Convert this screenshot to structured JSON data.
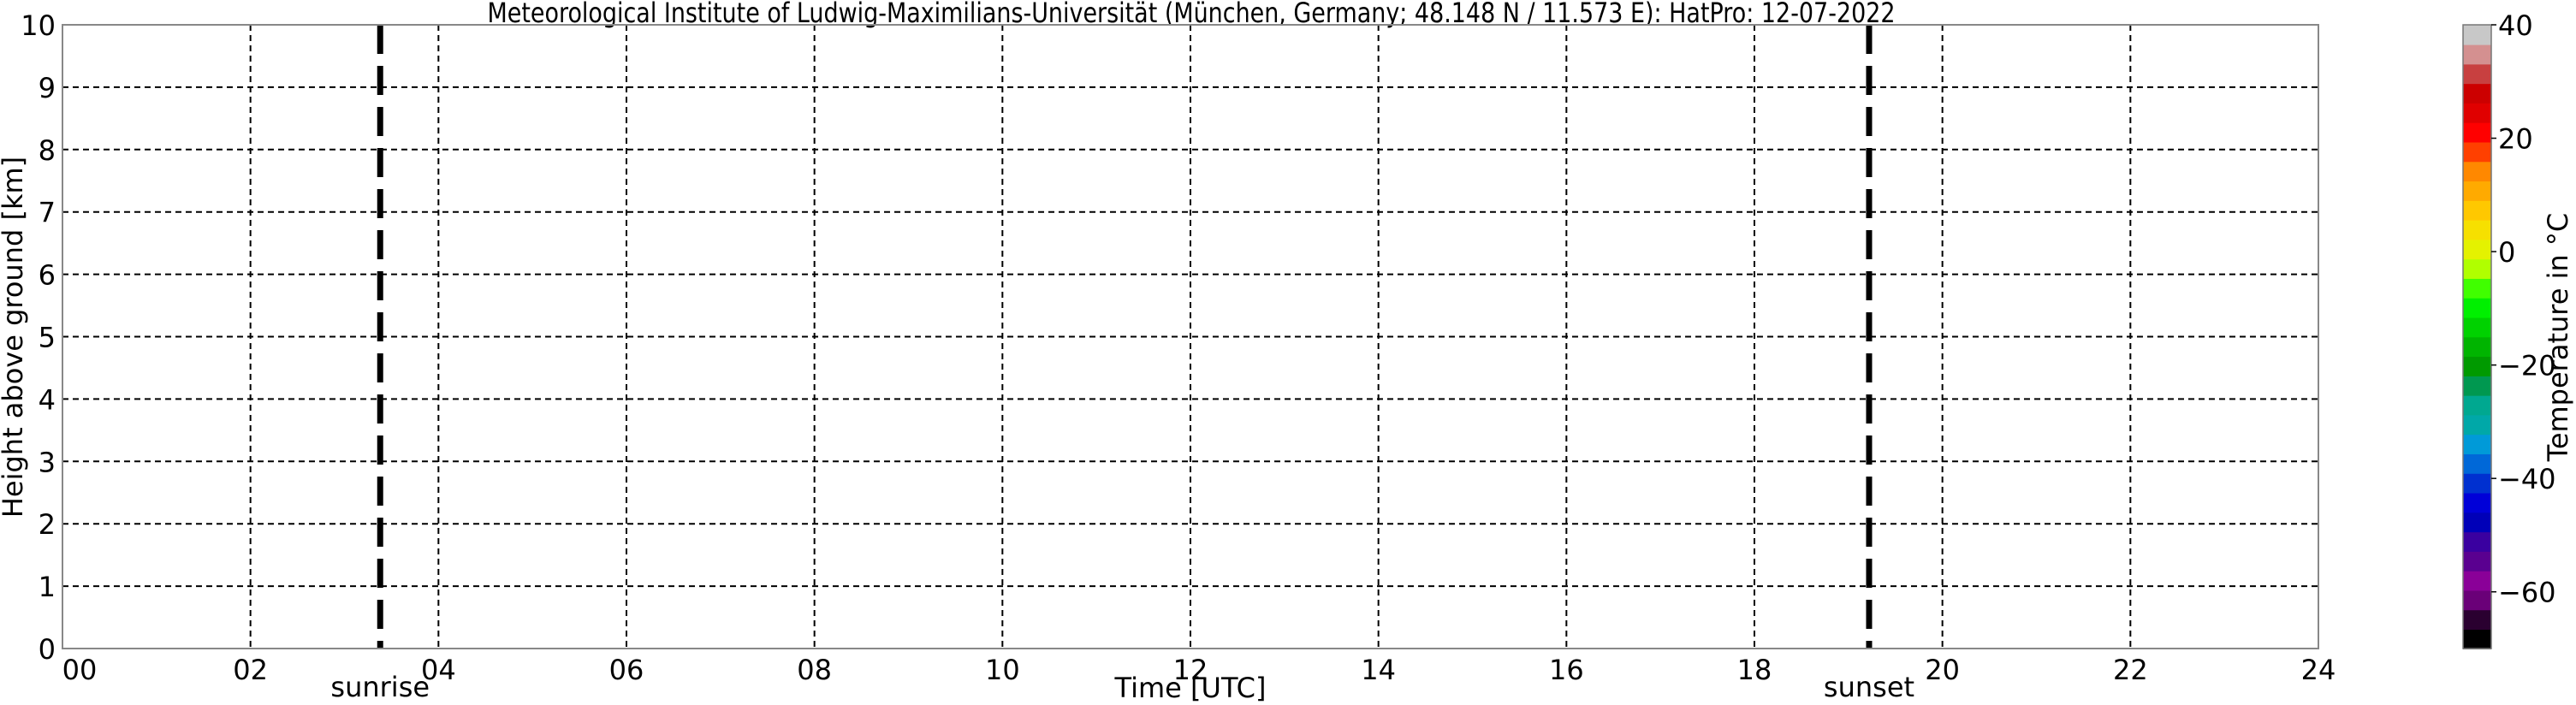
{
  "chart_data": {
    "type": "heatmap",
    "title": "Meteorological Institute of Ludwig-Maximilians-Universität (München, Germany; 48.148 N / 11.573 E):    HatPro: 12-07-2022",
    "xlabel": "Time [UTC]",
    "ylabel": "Height above ground [km]",
    "xlim": [
      0,
      24
    ],
    "ylim": [
      0,
      10
    ],
    "xticks": [
      "00",
      "02",
      "04",
      "06",
      "08",
      "10",
      "12",
      "14",
      "16",
      "18",
      "20",
      "22",
      "24"
    ],
    "xtick_values": [
      0,
      2,
      4,
      6,
      8,
      10,
      12,
      14,
      16,
      18,
      20,
      22,
      24
    ],
    "yticks": [
      "0",
      "1",
      "2",
      "3",
      "4",
      "5",
      "6",
      "7",
      "8",
      "9",
      "10"
    ],
    "yvalues": [
      0,
      1,
      2,
      3,
      4,
      5,
      6,
      7,
      8,
      9,
      10
    ],
    "grid": true,
    "values": [],
    "annotations": [
      {
        "label": "sunrise",
        "x": 3.38
      },
      {
        "label": "sunset",
        "x": 19.22
      }
    ],
    "colorbar": {
      "label": "Temperature in $^\\circ$C",
      "label_text": "Temperature in °C",
      "range": [
        -70,
        40
      ],
      "ticks": [
        "40",
        "20",
        "0",
        "−20",
        "−40",
        "−60"
      ],
      "tick_values": [
        40,
        20,
        0,
        -20,
        -40,
        -60
      ],
      "colors": [
        "#000000",
        "#2a0030",
        "#6a0078",
        "#8a0098",
        "#5a0090",
        "#3a00a0",
        "#0000b8",
        "#0000d8",
        "#0030d0",
        "#0068d8",
        "#009ad8",
        "#00a8a8",
        "#00a890",
        "#009850",
        "#009a00",
        "#00b400",
        "#00d200",
        "#00f000",
        "#40ff00",
        "#b0ff00",
        "#e4f200",
        "#f6e000",
        "#ffc800",
        "#ffaa00",
        "#ff8800",
        "#ff4000",
        "#ff0000",
        "#e00000",
        "#cc0000",
        "#c84040",
        "#d49090",
        "#c8c8c8"
      ]
    }
  }
}
